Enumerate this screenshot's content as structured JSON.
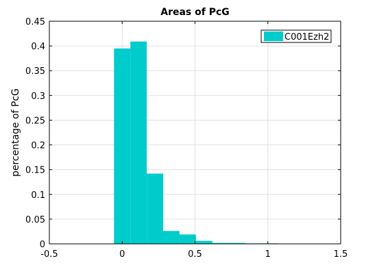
{
  "chart_data": {
    "type": "bar",
    "title": "Areas of PcG",
    "xlabel": "",
    "ylabel": "percentage of PcG",
    "xlim": [
      -0.5,
      1.5
    ],
    "ylim": [
      0,
      0.45
    ],
    "xticks": [
      "-0.5",
      "0",
      "0.5",
      "1",
      "1.5"
    ],
    "yticks": [
      "0",
      "0.05",
      "0.1",
      "0.15",
      "0.2",
      "0.25",
      "0.3",
      "0.35",
      "0.4",
      "0.45"
    ],
    "grid": true,
    "legend": "top-right",
    "bin_width": 0.1125,
    "bin_centers": [
      0.0,
      0.1125,
      0.225,
      0.3375,
      0.45,
      0.5625,
      0.675,
      0.7875,
      0.9,
      1.0125
    ],
    "series": [
      {
        "name": "C001Ezh2",
        "color": "#00cccc",
        "values": [
          0.395,
          0.409,
          0.142,
          0.026,
          0.019,
          0.006,
          0.002,
          0.002,
          0.001,
          0.001
        ]
      }
    ]
  }
}
